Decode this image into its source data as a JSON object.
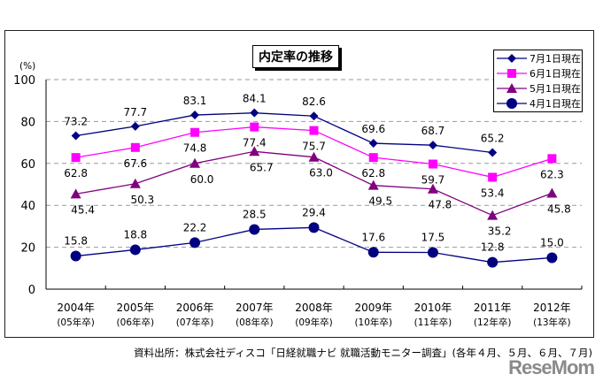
{
  "chart_data": {
    "type": "line",
    "title": "内定率の推移",
    "ylabel": "(%)",
    "ylim": [
      0,
      100
    ],
    "yticks": [
      0,
      20,
      40,
      60,
      80,
      100
    ],
    "grid": true,
    "legend_position": "top-right",
    "categories": [
      "2004年",
      "2005年",
      "2006年",
      "2007年",
      "2008年",
      "2009年",
      "2010年",
      "2011年",
      "2012年"
    ],
    "subcategories": [
      "(05年卒)",
      "(06年卒)",
      "(07年卒)",
      "(08年卒)",
      "(09年卒)",
      "(10年卒)",
      "(11年卒)",
      "(12年卒)",
      "(13年卒)"
    ],
    "series": [
      {
        "name": "7月1日現在",
        "color": "#000080",
        "marker": "diamond",
        "values": [
          73.2,
          77.7,
          83.1,
          84.1,
          82.6,
          69.6,
          68.7,
          65.2,
          null
        ]
      },
      {
        "name": "6月1日現在",
        "color": "#ff00ff",
        "marker": "square",
        "values": [
          62.8,
          67.6,
          74.8,
          77.4,
          75.7,
          62.8,
          59.7,
          53.4,
          62.3
        ]
      },
      {
        "name": "5月1日現在",
        "color": "#800080",
        "marker": "triangle",
        "values": [
          45.4,
          50.3,
          60.0,
          65.7,
          63.0,
          49.5,
          47.8,
          35.2,
          45.8
        ]
      },
      {
        "name": "4月1日現在",
        "color": "#000080",
        "marker": "circle",
        "values": [
          15.8,
          18.8,
          22.2,
          28.5,
          29.4,
          17.6,
          17.5,
          12.8,
          15.0
        ]
      }
    ]
  },
  "source": "資料出所：株式会社ディスコ「日経就職ナビ 就職活動モニター調査」(各年４月、５月、６月、７月)",
  "watermark": "ReseMom"
}
